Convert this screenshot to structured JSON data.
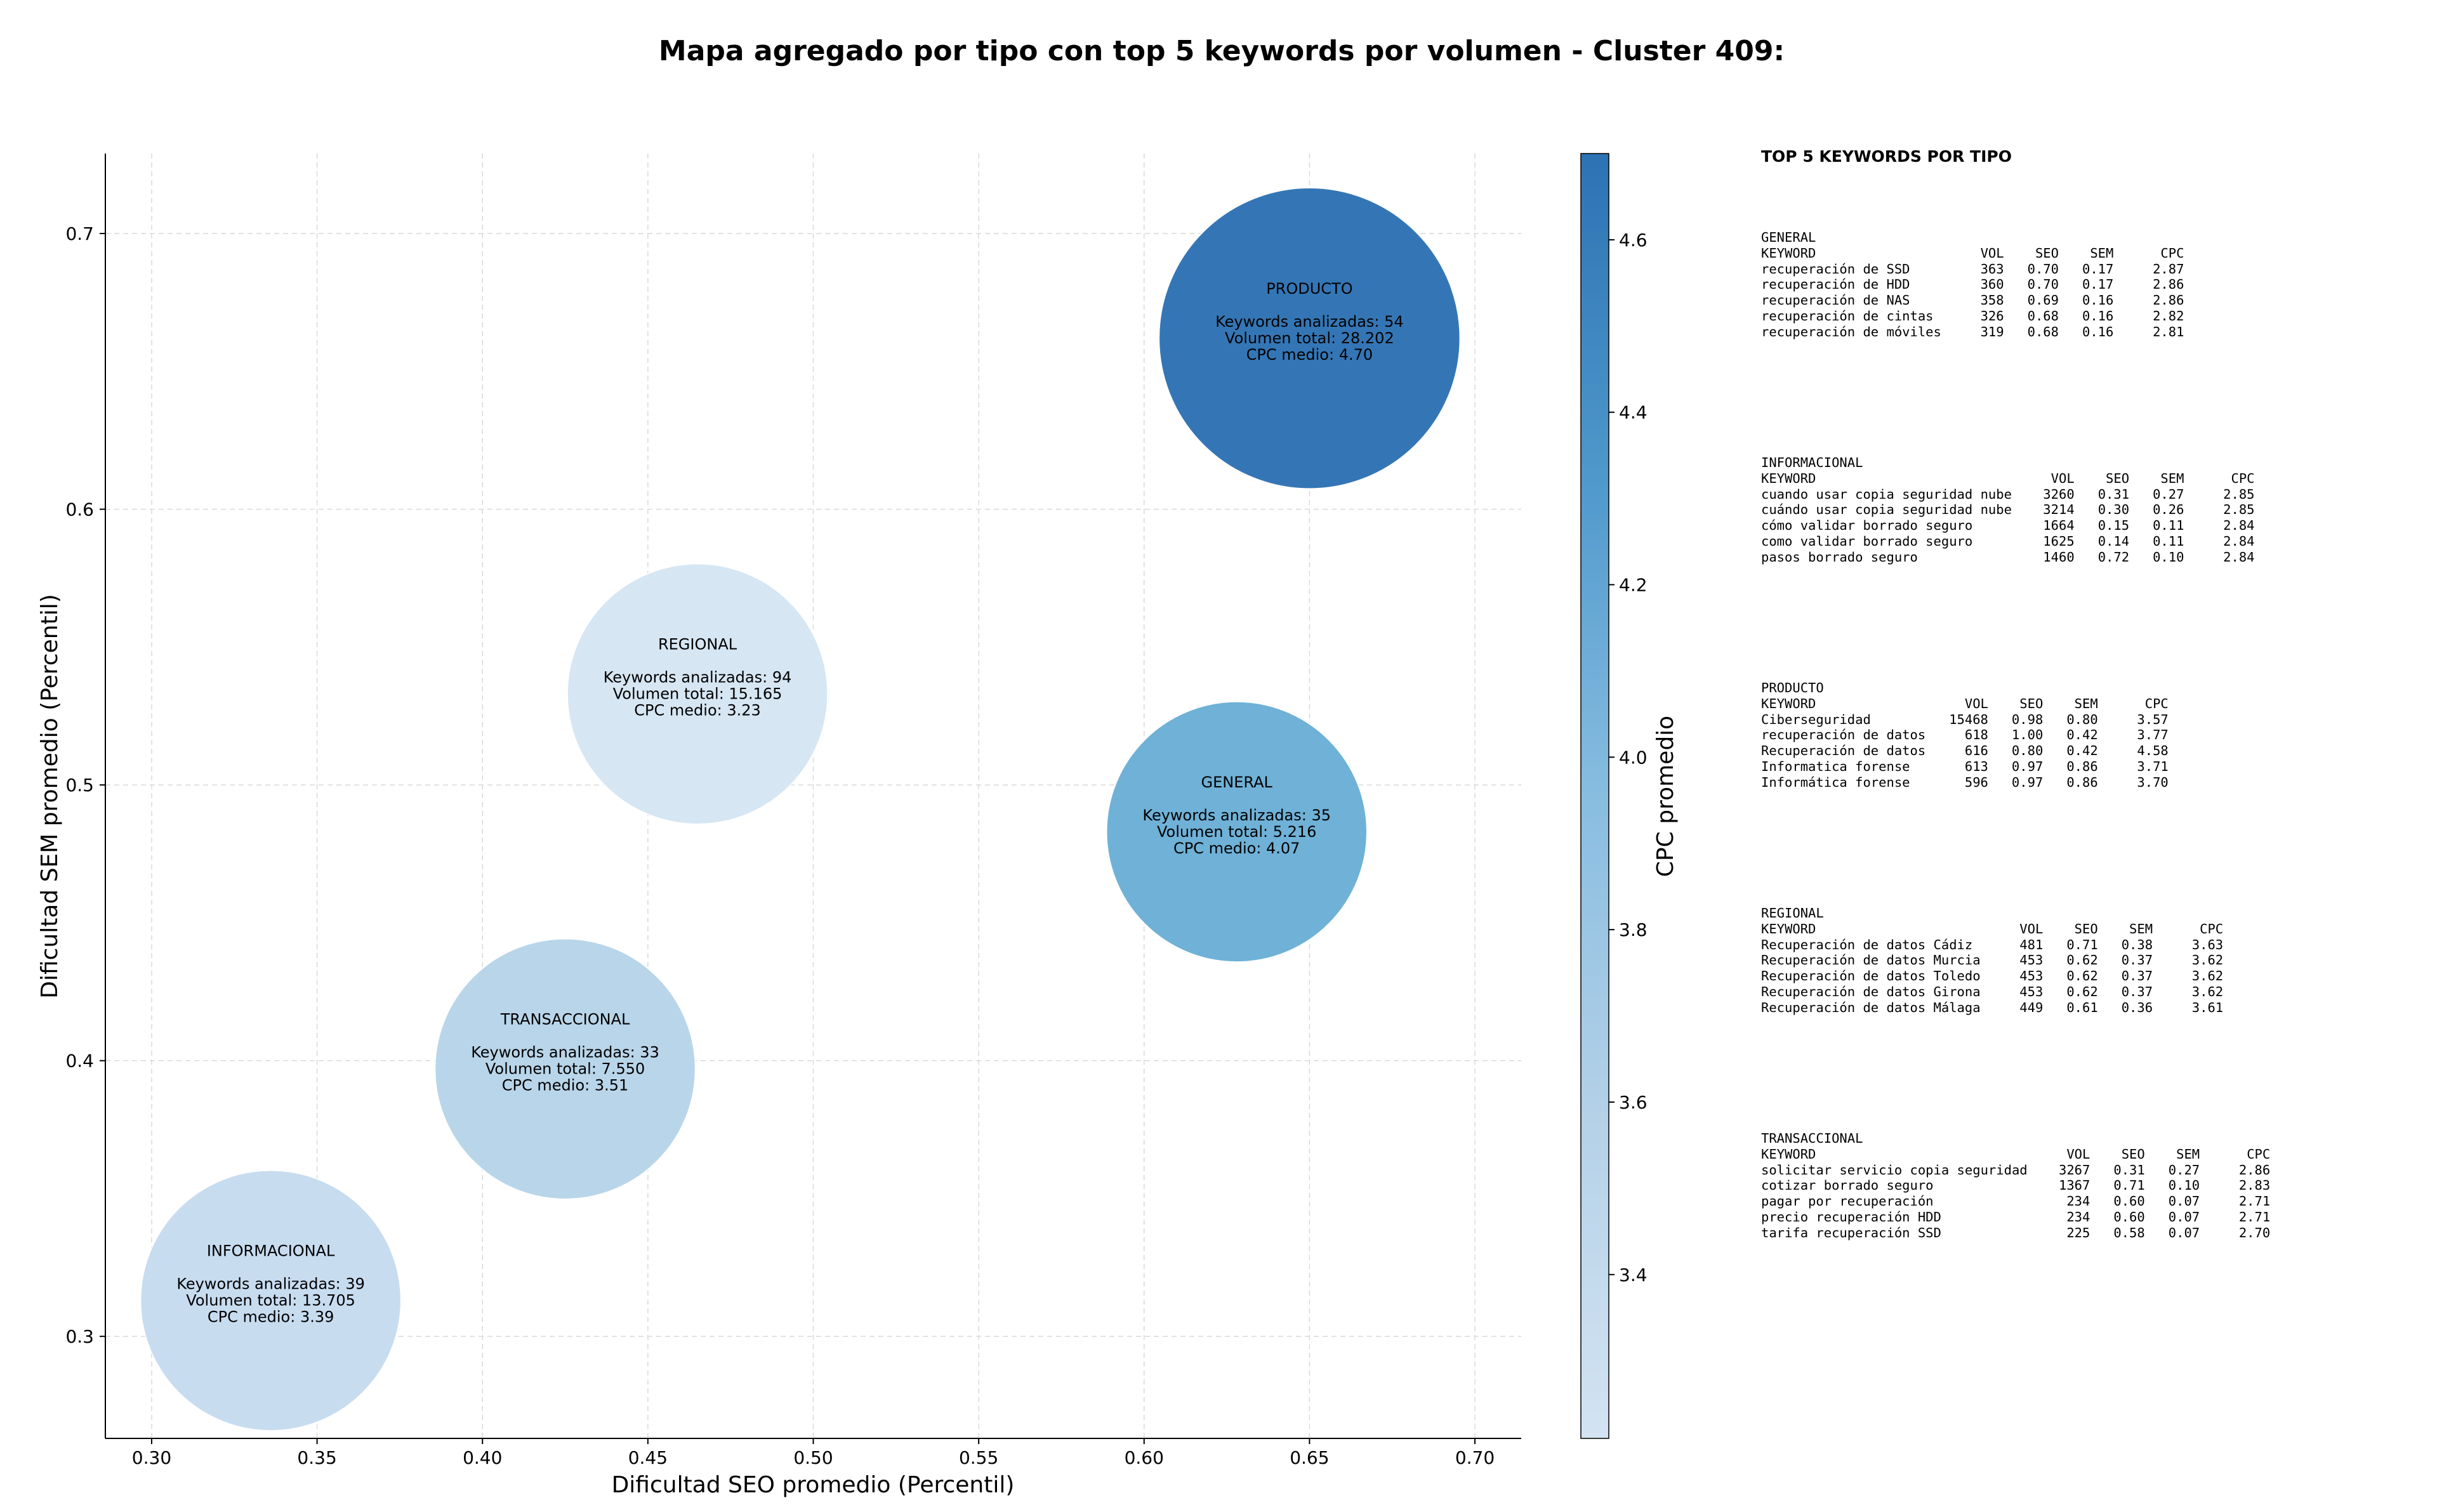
{
  "chart_data": {
    "type": "scatter",
    "title": "Mapa agregado por tipo con top 5 keywords por volumen - Cluster 409:",
    "xlabel": "Dificultad SEO promedio (Percentil)",
    "ylabel": "Dificultad SEM promedio (Percentil)",
    "xlim": [
      0.286,
      0.714
    ],
    "ylim": [
      0.263,
      0.729
    ],
    "xticks": [
      "0.30",
      "0.35",
      "0.40",
      "0.45",
      "0.50",
      "0.55",
      "0.60",
      "0.65",
      "0.70"
    ],
    "yticks": [
      "0.3",
      "0.4",
      "0.5",
      "0.6",
      "0.7"
    ],
    "grid": true,
    "colorbar": {
      "label": "CPC promedio",
      "min": 3.21,
      "max": 4.7,
      "ticks": [
        "3.4",
        "3.6",
        "3.8",
        "4.0",
        "4.2",
        "4.4",
        "4.6"
      ],
      "color_low": "#d3e3f2",
      "color_high": "#2d72b3"
    },
    "points": [
      {
        "name": "PRODUCTO",
        "x": 0.65,
        "y": 0.662,
        "volume": 28202,
        "keywords_line": "Keywords analizadas: 54",
        "volume_line": "Volumen total: 28.202",
        "cpc_line": "CPC medio: 4.70",
        "cpc": 4.7,
        "color": "#2d72b3"
      },
      {
        "name": "REGIONAL",
        "x": 0.465,
        "y": 0.533,
        "volume": 15165,
        "keywords_line": "Keywords analizadas: 94",
        "volume_line": "Volumen total: 15.165",
        "cpc_line": "CPC medio: 3.23",
        "cpc": 3.23,
        "color": "#d5e5f3"
      },
      {
        "name": "GENERAL",
        "x": 0.628,
        "y": 0.483,
        "volume": 5216,
        "keywords_line": "Keywords analizadas: 35",
        "volume_line": "Volumen total: 5.216",
        "cpc_line": "CPC medio: 4.07",
        "cpc": 4.07,
        "color": "#6aaed6"
      },
      {
        "name": "TRANSACCIONAL",
        "x": 0.425,
        "y": 0.397,
        "volume": 7550,
        "keywords_line": "Keywords analizadas: 33",
        "volume_line": "Volumen total: 7.550",
        "cpc_line": "CPC medio: 3.51",
        "cpc": 3.51,
        "color": "#b7d4e8"
      },
      {
        "name": "INFORMACIONAL",
        "x": 0.336,
        "y": 0.313,
        "volume": 13705,
        "keywords_line": "Keywords analizadas: 39",
        "volume_line": "Volumen total: 13.705",
        "cpc_line": "CPC medio: 3.39",
        "cpc": 3.39,
        "color": "#c6dbef"
      }
    ]
  },
  "keyword_panel": {
    "heading": "TOP 5 KEYWORDS POR TIPO",
    "column_headers": [
      "KEYWORD",
      "VOL",
      "SEO",
      "SEM",
      "CPC"
    ],
    "groups": [
      {
        "name": "GENERAL",
        "rows": [
          [
            "recuperación de SSD",
            "363",
            "0.70",
            "0.17",
            "2.87"
          ],
          [
            "recuperación de HDD",
            "360",
            "0.70",
            "0.17",
            "2.86"
          ],
          [
            "recuperación de NAS",
            "358",
            "0.69",
            "0.16",
            "2.86"
          ],
          [
            "recuperación de cintas",
            "326",
            "0.68",
            "0.16",
            "2.82"
          ],
          [
            "recuperación de móviles",
            "319",
            "0.68",
            "0.16",
            "2.81"
          ]
        ]
      },
      {
        "name": "INFORMACIONAL",
        "rows": [
          [
            "cuando usar copia seguridad nube",
            "3260",
            "0.31",
            "0.27",
            "2.85"
          ],
          [
            "cuándo usar copia seguridad nube",
            "3214",
            "0.30",
            "0.26",
            "2.85"
          ],
          [
            "cómo validar borrado seguro",
            "1664",
            "0.15",
            "0.11",
            "2.84"
          ],
          [
            "como validar borrado seguro",
            "1625",
            "0.14",
            "0.11",
            "2.84"
          ],
          [
            "pasos borrado seguro",
            "1460",
            "0.72",
            "0.10",
            "2.84"
          ]
        ]
      },
      {
        "name": "PRODUCTO",
        "rows": [
          [
            "Ciberseguridad",
            "15468",
            "0.98",
            "0.80",
            "3.57"
          ],
          [
            "recuperación de datos",
            "618",
            "1.00",
            "0.42",
            "3.77"
          ],
          [
            "Recuperación de datos",
            "616",
            "0.80",
            "0.42",
            "4.58"
          ],
          [
            "Informatica forense",
            "613",
            "0.97",
            "0.86",
            "3.71"
          ],
          [
            "Informática forense",
            "596",
            "0.97",
            "0.86",
            "3.70"
          ]
        ]
      },
      {
        "name": "REGIONAL",
        "rows": [
          [
            "Recuperación de datos Cádiz",
            "481",
            "0.71",
            "0.38",
            "3.63"
          ],
          [
            "Recuperación de datos Murcia",
            "453",
            "0.62",
            "0.37",
            "3.62"
          ],
          [
            "Recuperación de datos Toledo",
            "453",
            "0.62",
            "0.37",
            "3.62"
          ],
          [
            "Recuperación de datos Girona",
            "453",
            "0.62",
            "0.37",
            "3.62"
          ],
          [
            "Recuperación de datos Málaga",
            "449",
            "0.61",
            "0.36",
            "3.61"
          ]
        ]
      },
      {
        "name": "TRANSACCIONAL",
        "rows": [
          [
            "solicitar servicio copia seguridad",
            "3267",
            "0.31",
            "0.27",
            "2.86"
          ],
          [
            "cotizar borrado seguro",
            "1367",
            "0.71",
            "0.10",
            "2.83"
          ],
          [
            "pagar por recuperación",
            "234",
            "0.60",
            "0.07",
            "2.71"
          ],
          [
            "precio recuperación HDD",
            "234",
            "0.60",
            "0.07",
            "2.71"
          ],
          [
            "tarifa recuperación SSD",
            "225",
            "0.58",
            "0.07",
            "2.70"
          ]
        ]
      }
    ]
  }
}
